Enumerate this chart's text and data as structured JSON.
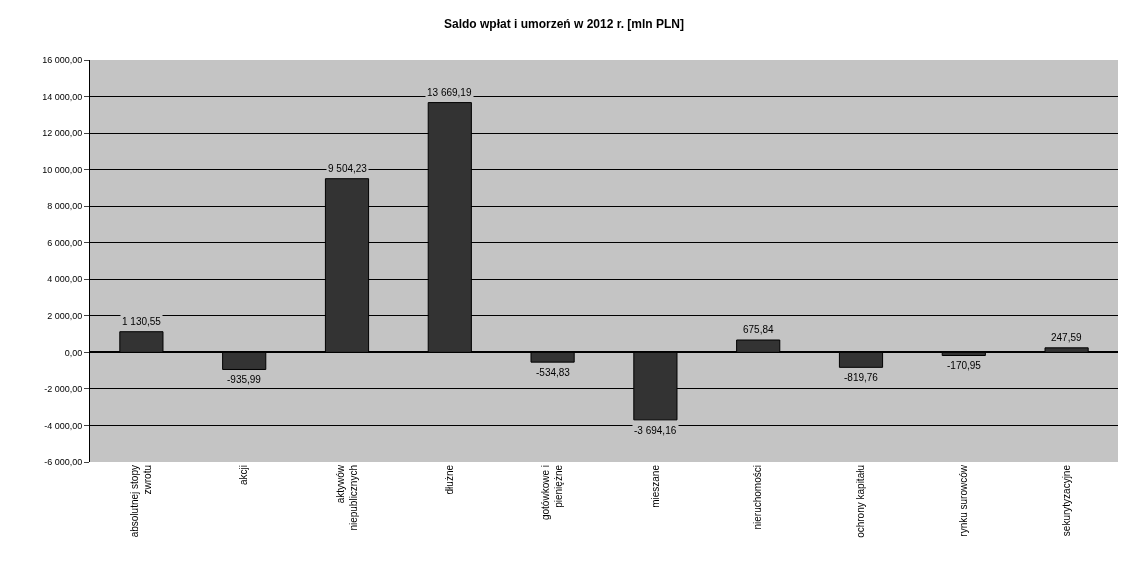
{
  "chart_data": {
    "type": "bar",
    "title": "Saldo wpłat i umorzeń w 2012 r. [mln PLN]",
    "categories": [
      "absolutnej stopy\nzwrotu",
      "akcji",
      "aktywów\nniepublicznych",
      "dłużne",
      "gotówkowe i\npieniężne",
      "mieszane",
      "nieruchomości",
      "ochrony kapitału",
      "rynku surowców",
      "sekurytyzacyjne"
    ],
    "values": [
      1130.55,
      -935.99,
      9504.23,
      13669.19,
      -534.83,
      -3694.16,
      675.84,
      -819.76,
      -170.95,
      247.59
    ],
    "value_labels": [
      "1 130,55",
      "-935,99",
      "9 504,23",
      "13 669,19",
      "-534,83",
      "-3 694,16",
      "675,84",
      "-819,76",
      "-170,95",
      "247,59"
    ],
    "color": "#333333",
    "ylim": [
      -6000,
      16000
    ],
    "yticks": [
      {
        "value": -6000,
        "label": "-6 000,00"
      },
      {
        "value": -4000,
        "label": "-4 000,00"
      },
      {
        "value": -2000,
        "label": "-2 000,00"
      },
      {
        "value": 0,
        "label": "0,00"
      },
      {
        "value": 2000,
        "label": "2 000,00"
      },
      {
        "value": 4000,
        "label": "4 000,00"
      },
      {
        "value": 6000,
        "label": "6 000,00"
      },
      {
        "value": 8000,
        "label": "8 000,00"
      },
      {
        "value": 10000,
        "label": "10 000,00"
      },
      {
        "value": 12000,
        "label": "12 000,00"
      },
      {
        "value": 14000,
        "label": "14 000,00"
      },
      {
        "value": 16000,
        "label": "16 000,00"
      }
    ],
    "grid": "y"
  }
}
